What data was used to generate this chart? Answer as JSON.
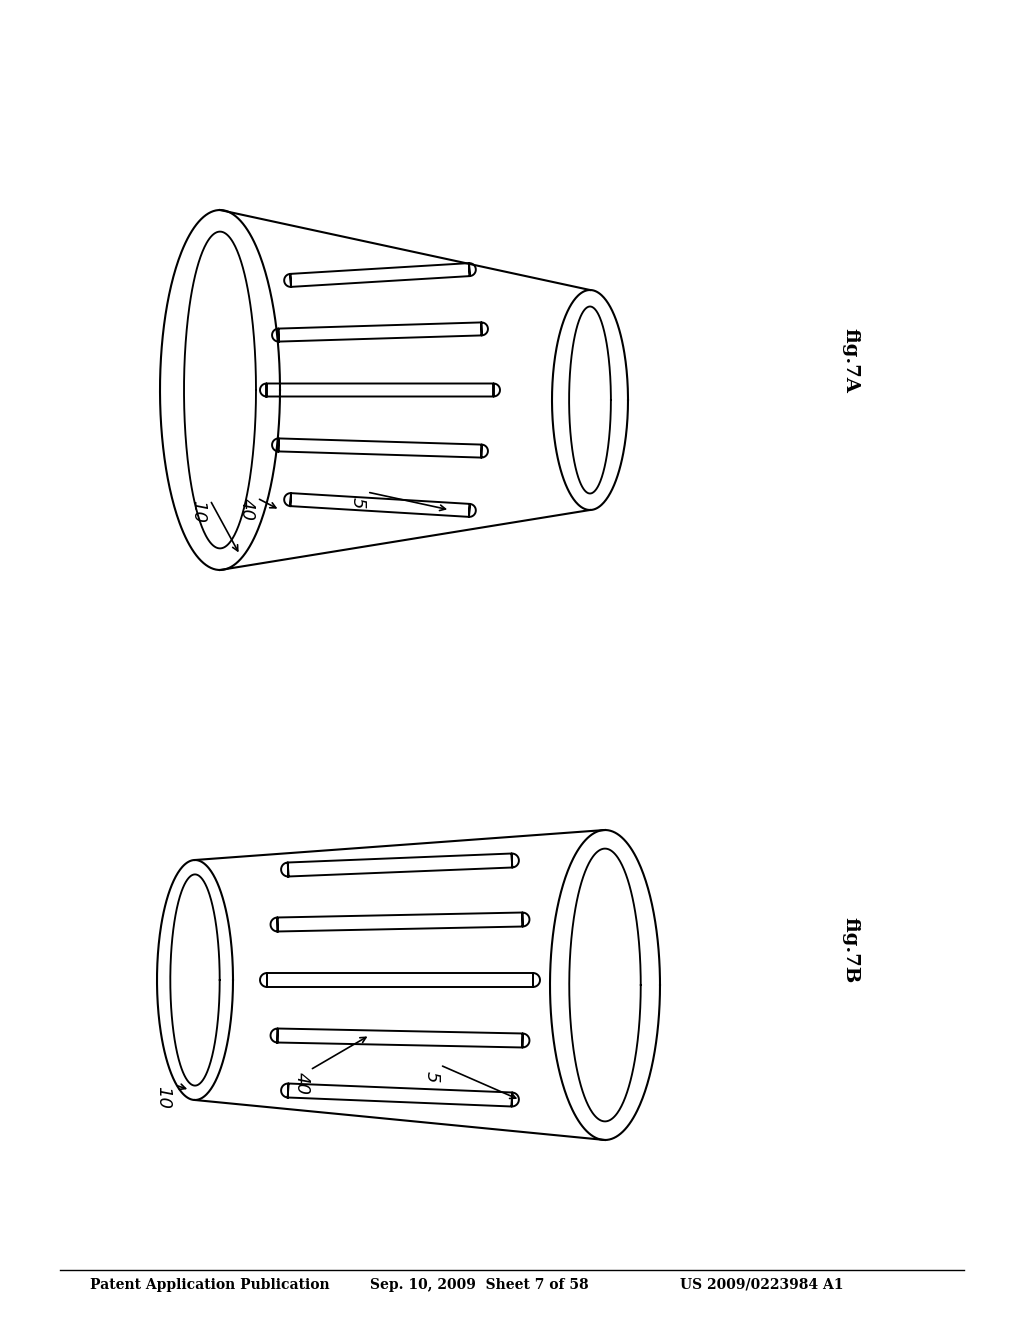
{
  "bg_color": "#ffffff",
  "line_color": "#000000",
  "header_text": "Patent Application Publication",
  "header_date": "Sep. 10, 2009  Sheet 7 of 58",
  "header_patent": "US 2009/0223984 A1",
  "fig7b_label": "fig.7B",
  "fig7a_label": "fig.7A",
  "label_10_b": "10",
  "label_40_b": "40",
  "label_5_b": "5",
  "label_10_a": "10",
  "label_40_a": "40",
  "label_5_a": "5"
}
